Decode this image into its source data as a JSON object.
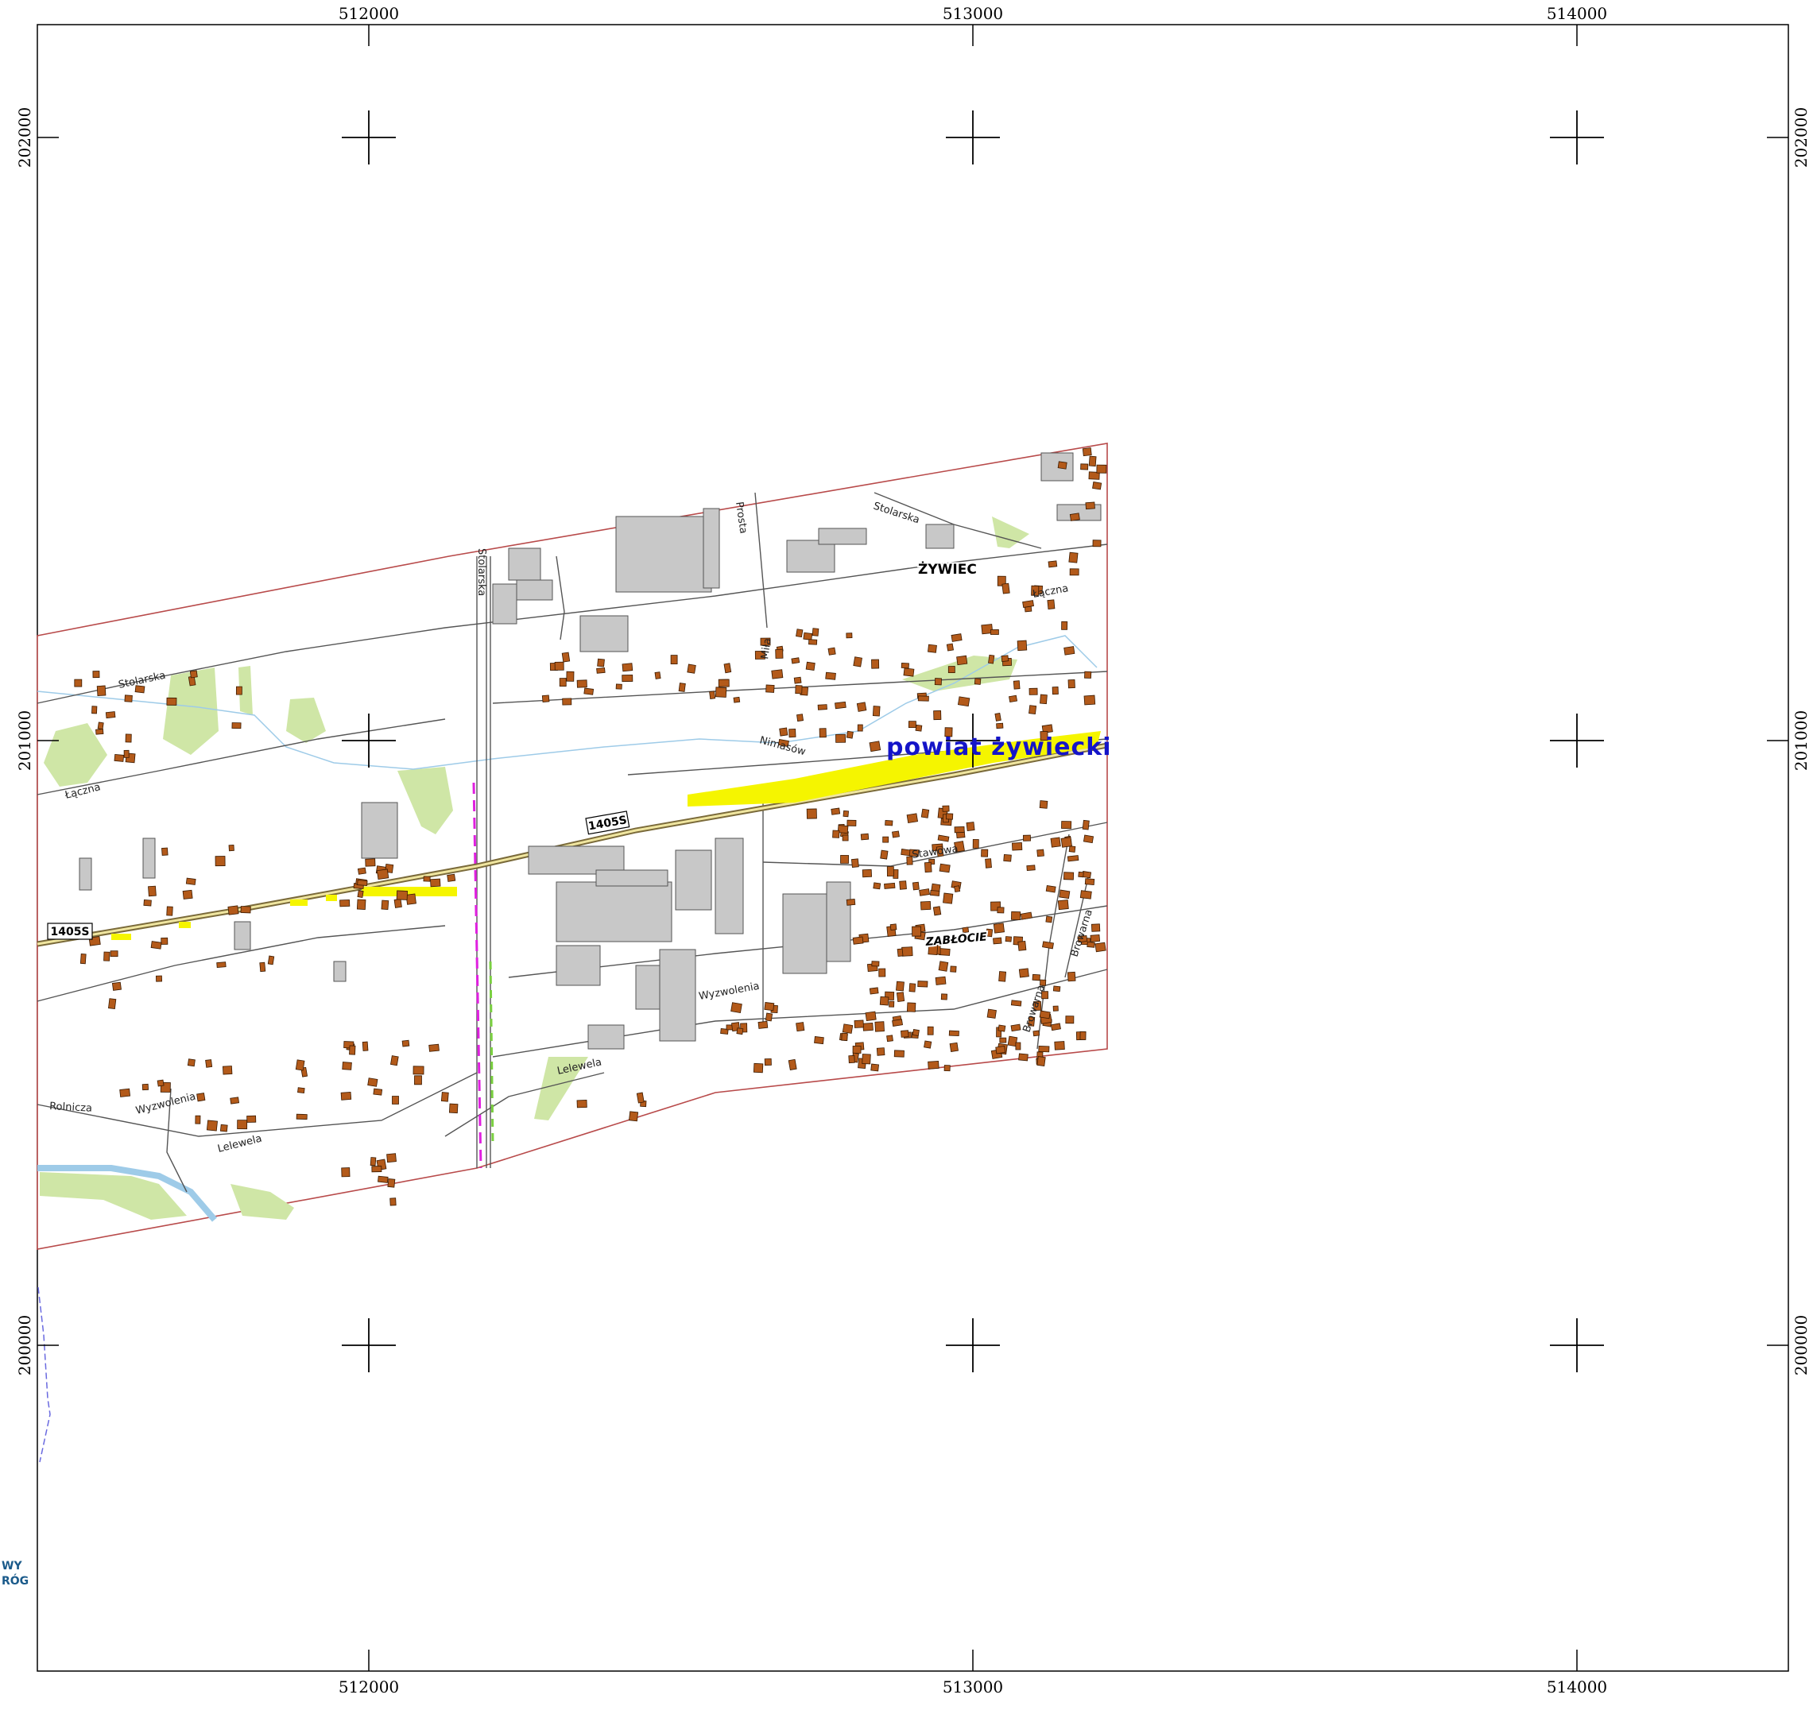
{
  "map": {
    "grid_x_labels": [
      "512000",
      "513000",
      "514000"
    ],
    "grid_y_labels": [
      "202000",
      "201000",
      "200000"
    ],
    "region_label": "powiat żywiecki",
    "places": [
      "ŻYWIEC",
      "ZABŁOCIE"
    ],
    "streets": [
      "Stolarska",
      "Stolarska",
      "Stolarska",
      "Prosta",
      "Miła",
      "Łączna",
      "Łączna",
      "Nimasów",
      "Stawowa",
      "Browarna",
      "Browarna",
      "Wyzwolenia",
      "Wyzwolenia",
      "Lelewela",
      "Lelewela",
      "Rolnicza"
    ],
    "road_shields": [
      "1405S",
      "1405S"
    ],
    "legend_fragments": [
      "WY",
      "RÓG"
    ],
    "colors": {
      "building_residential": "#b35a1a",
      "building_industrial": "#c8c8c8",
      "green_area": "#cfe6a6",
      "water": "#9ecbe8",
      "boundary": "#b84a4a",
      "highlight": "#f5f500",
      "region_label": "#1414c8",
      "railway_dash": "#e020e0"
    }
  }
}
